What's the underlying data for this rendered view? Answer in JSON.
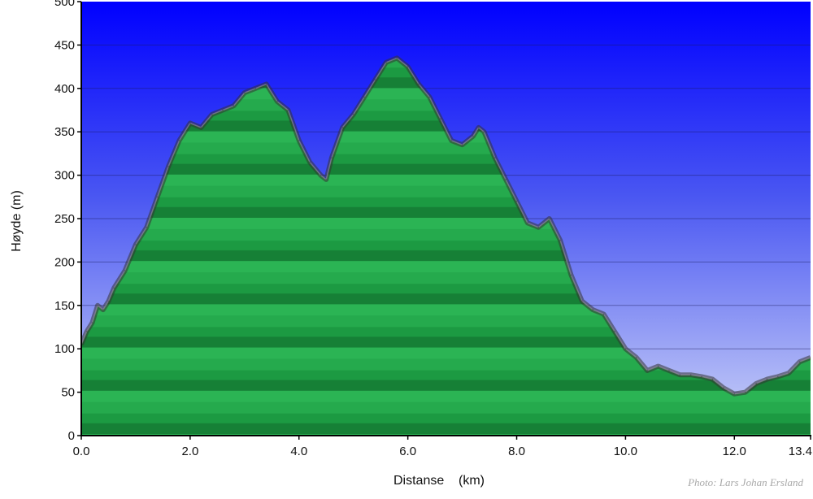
{
  "chart_data": {
    "type": "area",
    "title": "",
    "xlabel": "Distanse    (km)",
    "ylabel": "Høyde (m)",
    "xlim": [
      0,
      13.4
    ],
    "ylim": [
      0,
      500
    ],
    "x_ticks": [
      "0.0",
      "2.0",
      "4.0",
      "6.0",
      "8.0",
      "10.0",
      "12.0",
      "13.4"
    ],
    "y_ticks": [
      "0",
      "50",
      "100",
      "150",
      "200",
      "250",
      "300",
      "350",
      "400",
      "450",
      "500"
    ],
    "grid": true,
    "legend": "none",
    "colors": {
      "fill": "#1f9e44",
      "fill_light": "#2bb555",
      "fill_dark": "#157a32",
      "outline": "#333333",
      "sky_top": "#0000ff",
      "sky_bottom": "#c8d0f8"
    },
    "series": [
      {
        "x": [
          0.0,
          0.1,
          0.2,
          0.3,
          0.4,
          0.5,
          0.6,
          0.8,
          1.0,
          1.2,
          1.4,
          1.6,
          1.8,
          2.0,
          2.2,
          2.4,
          2.6,
          2.8,
          3.0,
          3.2,
          3.4,
          3.6,
          3.8,
          4.0,
          4.2,
          4.4,
          4.5,
          4.6,
          4.8,
          5.0,
          5.2,
          5.4,
          5.6,
          5.8,
          6.0,
          6.2,
          6.4,
          6.6,
          6.8,
          7.0,
          7.2,
          7.3,
          7.4,
          7.6,
          7.8,
          8.0,
          8.2,
          8.4,
          8.6,
          8.8,
          9.0,
          9.2,
          9.4,
          9.6,
          9.8,
          10.0,
          10.2,
          10.4,
          10.6,
          10.8,
          11.0,
          11.2,
          11.4,
          11.6,
          11.8,
          12.0,
          12.2,
          12.4,
          12.6,
          12.8,
          13.0,
          13.2,
          13.4
        ],
        "y": [
          105,
          120,
          130,
          150,
          145,
          155,
          170,
          190,
          220,
          240,
          275,
          310,
          340,
          360,
          355,
          370,
          375,
          380,
          395,
          400,
          405,
          385,
          375,
          340,
          315,
          300,
          295,
          320,
          355,
          370,
          390,
          410,
          430,
          435,
          425,
          405,
          390,
          365,
          340,
          335,
          345,
          355,
          350,
          320,
          295,
          270,
          245,
          240,
          250,
          225,
          185,
          155,
          145,
          140,
          120,
          100,
          90,
          75,
          80,
          75,
          70,
          70,
          68,
          65,
          55,
          48,
          50,
          60,
          65,
          68,
          72,
          85,
          90
        ]
      }
    ]
  },
  "credit": "Photo: Lars Johan Ersland"
}
